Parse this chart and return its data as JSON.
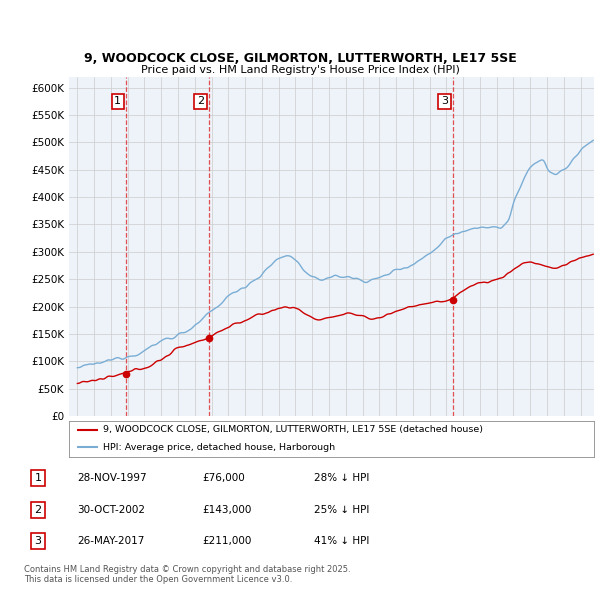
{
  "title1": "9, WOODCOCK CLOSE, GILMORTON, LUTTERWORTH, LE17 5SE",
  "title2": "Price paid vs. HM Land Registry's House Price Index (HPI)",
  "xlim_start": 1994.5,
  "xlim_end": 2025.8,
  "ylim_min": 0,
  "ylim_max": 620000,
  "yticks": [
    0,
    50000,
    100000,
    150000,
    200000,
    250000,
    300000,
    350000,
    400000,
    450000,
    500000,
    550000,
    600000
  ],
  "ytick_labels": [
    "£0",
    "£50K",
    "£100K",
    "£150K",
    "£200K",
    "£250K",
    "£300K",
    "£350K",
    "£400K",
    "£450K",
    "£500K",
    "£550K",
    "£600K"
  ],
  "sale_dates": [
    1997.91,
    2002.83,
    2017.4
  ],
  "sale_prices": [
    76000,
    143000,
    211000
  ],
  "sale_labels": [
    "1",
    "2",
    "3"
  ],
  "sale_color": "#cc0000",
  "hpi_color": "#7aadd4",
  "vline_color": "#dd3333",
  "bg_fill_color": "#ddeeff",
  "legend_label_red": "9, WOODCOCK CLOSE, GILMORTON, LUTTERWORTH, LE17 5SE (detached house)",
  "legend_label_blue": "HPI: Average price, detached house, Harborough",
  "table_data": [
    [
      "1",
      "28-NOV-1997",
      "£76,000",
      "28% ↓ HPI"
    ],
    [
      "2",
      "30-OCT-2002",
      "£143,000",
      "25% ↓ HPI"
    ],
    [
      "3",
      "26-MAY-2017",
      "£211,000",
      "41% ↓ HPI"
    ]
  ],
  "footnote": "Contains HM Land Registry data © Crown copyright and database right 2025.\nThis data is licensed under the Open Government Licence v3.0.",
  "bg_color": "#ffffff",
  "grid_color": "#cccccc",
  "chart_bg": "#eef3fa"
}
